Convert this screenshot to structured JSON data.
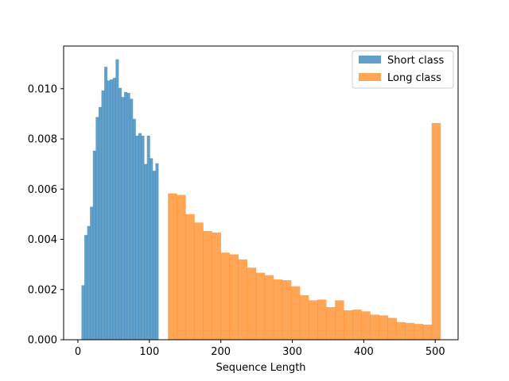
{
  "chart_data": {
    "type": "histogram",
    "title": "",
    "xlabel": "Sequence Length",
    "ylabel": "",
    "xlim": [
      -20,
      532
    ],
    "ylim": [
      0,
      0.0117
    ],
    "xticks": [
      0,
      100,
      200,
      300,
      400,
      500
    ],
    "yticks": [
      0.0,
      0.002,
      0.004,
      0.006,
      0.008,
      0.01
    ],
    "ytick_labels": [
      "0.000",
      "0.002",
      "0.004",
      "0.006",
      "0.008",
      "0.010"
    ],
    "grid": false,
    "legend_position": "top-right",
    "series": [
      {
        "name": "Short class",
        "color": "#1f77b4",
        "alpha": 0.7,
        "bin_start": 5,
        "bin_width": 3.98,
        "values": [
          0.00217,
          0.00417,
          0.00453,
          0.0053,
          0.00753,
          0.00887,
          0.00927,
          0.00993,
          0.01087,
          0.01033,
          0.01037,
          0.01043,
          0.01117,
          0.01003,
          0.00967,
          0.00987,
          0.00983,
          0.0096,
          0.0088,
          0.00813,
          0.00823,
          0.00813,
          0.007,
          0.00813,
          0.00723,
          0.00673,
          0.00703
        ]
      },
      {
        "name": "Long class",
        "color": "#ff7f0e",
        "alpha": 0.7,
        "bin_start": 126,
        "bin_width": 12.3,
        "values": [
          0.00583,
          0.00577,
          0.005,
          0.00467,
          0.00433,
          0.00427,
          0.00347,
          0.0034,
          0.0032,
          0.00287,
          0.00267,
          0.00257,
          0.0024,
          0.00237,
          0.00213,
          0.00177,
          0.00157,
          0.0016,
          0.0013,
          0.00157,
          0.00117,
          0.0012,
          0.00113,
          0.001,
          0.00097,
          0.00087,
          0.0007,
          0.00067,
          0.00063,
          0.0006,
          0.00863
        ]
      }
    ]
  }
}
